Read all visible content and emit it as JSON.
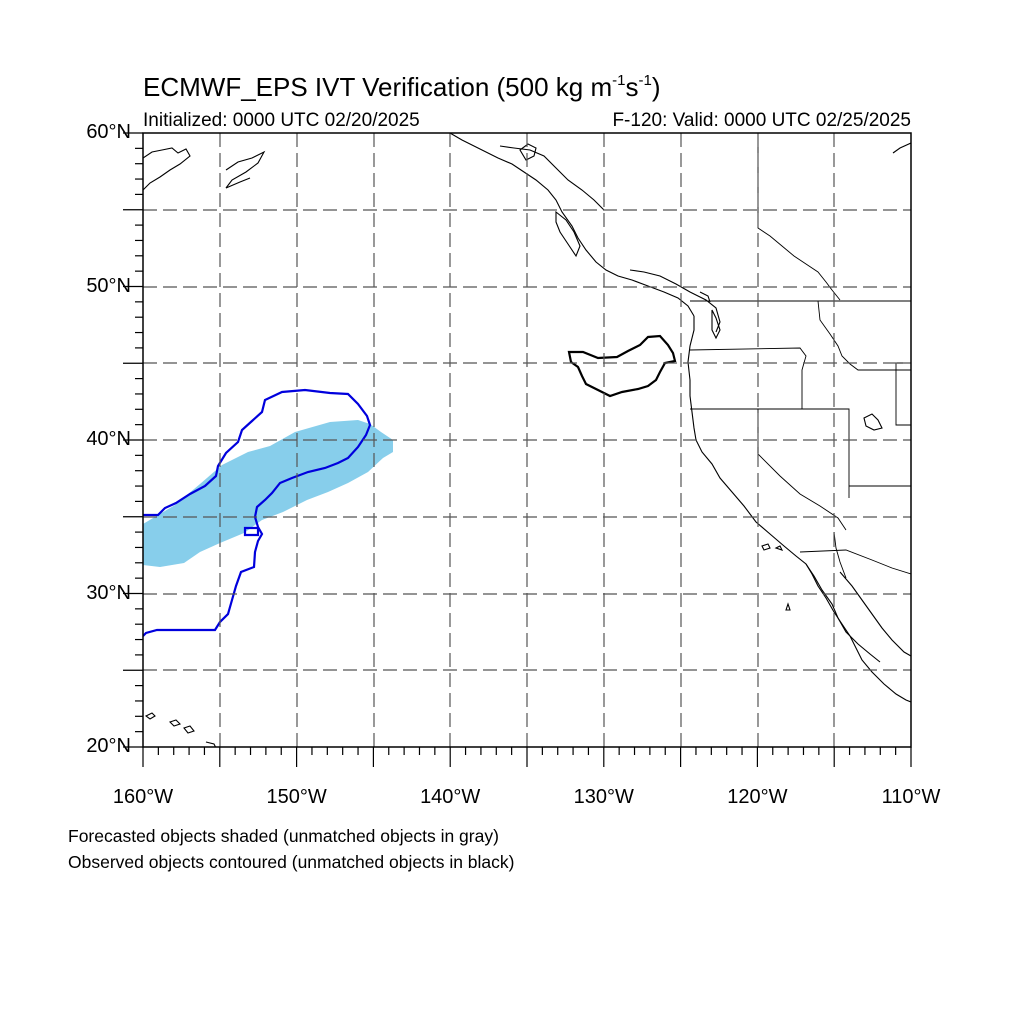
{
  "title": {
    "main": "ECMWF_EPS IVT Verification (500 kg m",
    "exp1": "-1",
    "mid": "s",
    "exp2": "-1",
    "close": ")"
  },
  "init_label": "Initialized: 0000 UTC 02/20/2025",
  "valid_label": "F-120: Valid: 0000 UTC 02/25/2025",
  "notes": {
    "forecast": "Forecasted objects shaded (unmatched objects in gray)",
    "observed": "Observed objects contoured (unmatched objects in black)"
  },
  "map": {
    "lon_min": -160,
    "lon_max": -110,
    "lat_min": 20,
    "lat_max": 60,
    "lat_labels": [
      {
        "lat": 60,
        "text": "60°N"
      },
      {
        "lat": 50,
        "text": "50°N"
      },
      {
        "lat": 40,
        "text": "40°N"
      },
      {
        "lat": 30,
        "text": "30°N"
      },
      {
        "lat": 20,
        "text": "20°N"
      }
    ],
    "lon_labels": [
      {
        "lon": -160,
        "text": "160°W"
      },
      {
        "lon": -150,
        "text": "150°W"
      },
      {
        "lon": -140,
        "text": "140°W"
      },
      {
        "lon": -130,
        "text": "130°W"
      },
      {
        "lon": -120,
        "text": "120°W"
      },
      {
        "lon": -110,
        "text": "110°W"
      }
    ],
    "colors": {
      "forecast_fill": "#87ceeb",
      "matched_contour": "#0000dd",
      "unmatched_contour": "#000000",
      "grid": "#555555"
    }
  }
}
